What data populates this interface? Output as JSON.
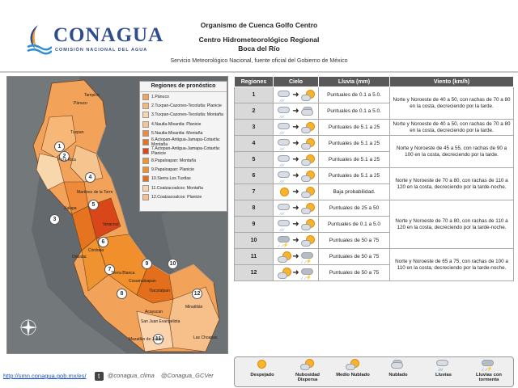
{
  "header": {
    "logo_text": "CONAGUA",
    "logo_subtitle": "COMISIÓN NACIONAL DEL AGUA",
    "title_org": "Organismo de Cuenca Golfo Centro",
    "title_center": "Centro Hidrometeorológico Regional",
    "title_place": "Boca del Río",
    "subtitle": "Servicio Meteorológico Nacional, fuente oficial del Gobierno de México"
  },
  "legend": {
    "title": "Regiones de pronóstico",
    "items": [
      {
        "label": "1.Pánuco",
        "color": "#f3a25a"
      },
      {
        "label": "2.Tuxpan-Cazones-Tecolutla: Planicie",
        "color": "#f7b877"
      },
      {
        "label": "3.Tuxpan-Cazones-Tecolutla: Montaña",
        "color": "#f9d7ad"
      },
      {
        "label": "4.Nautla-Misantla: Planicie",
        "color": "#f5c48f"
      },
      {
        "label": "5.Nautla-Misantla: Montaña",
        "color": "#ee8a3a"
      },
      {
        "label": "6.Actopan-Antigua-Jamapa-Cotaxtla: Montaña",
        "color": "#e5731f"
      },
      {
        "label": "7.Actopan-Antigua-Jamapa-Cotaxtla: Planicie",
        "color": "#d8461a"
      },
      {
        "label": "8.Papaloapan: Montaña",
        "color": "#ef9230"
      },
      {
        "label": "9.Papaloapan: Planicie",
        "color": "#f08f2c"
      },
      {
        "label": "10.Sierra Los Tuxtlas",
        "color": "#e36f1c"
      },
      {
        "label": "11.Coatzacoalcos: Montaña",
        "color": "#fbd4ae"
      },
      {
        "label": "12.Coatzacoalcos: Planicie",
        "color": "#f7c08a"
      }
    ]
  },
  "map_pins": [
    "1",
    "2",
    "3",
    "4",
    "5",
    "6",
    "7",
    "8",
    "9",
    "10",
    "11",
    "12"
  ],
  "map_cities": [
    "Tampico",
    "Tuxpan",
    "Poza Rica",
    "Martínez de la Torre",
    "Xalapa",
    "Veracruz",
    "Córdoba",
    "Orizaba",
    "Tierra Blanca",
    "Cosamaloapan",
    "Acayucan",
    "Minatitlán",
    "Tlacotalpan",
    "Las Choapas",
    "Pánuco",
    "San Juan Evangelista",
    "Mazatlán de Juárez"
  ],
  "table": {
    "headers": [
      "Regiones",
      "Cielo",
      "Lluvia (mm)",
      "Viento (km/h)"
    ],
    "rows": [
      {
        "region": "1",
        "rain": "Puntuales de 0.1 a 5.0.",
        "from": "rain",
        "to": "partly"
      },
      {
        "region": "2",
        "rain": "Puntuales de 0.1 a 5.0.",
        "from": "rain",
        "to": "cloud"
      },
      {
        "region": "3",
        "rain": "Puntuales de 5.1 a 25",
        "from": "rain",
        "to": "partly"
      },
      {
        "region": "4",
        "rain": "Puntuales de 5.1 a 25",
        "from": "rain",
        "to": "partly"
      },
      {
        "region": "5",
        "rain": "Puntuales de 5.1 a 25",
        "from": "rain",
        "to": "partly"
      },
      {
        "region": "6",
        "rain": "Puntuales de 5.1 a 25",
        "from": "rain",
        "to": "partly"
      },
      {
        "region": "7",
        "rain": "Baja probabilidad.",
        "from": "sun",
        "to": "partly"
      },
      {
        "region": "8",
        "rain": "Puntuales de 25 a 50",
        "from": "rain",
        "to": "partly"
      },
      {
        "region": "9",
        "rain": "Puntuales de 0.1 a 5.0",
        "from": "rain",
        "to": "partly"
      },
      {
        "region": "10",
        "rain": "Puntuales de 50 a 75",
        "from": "storm",
        "to": "partly"
      },
      {
        "region": "11",
        "rain": "Puntuales de 50 a 75",
        "from": "partly",
        "to": "storm"
      },
      {
        "region": "12",
        "rain": "Puntuales de 50 a 75",
        "from": "partly",
        "to": "storm"
      }
    ],
    "wind_groups": [
      {
        "text": "Norte y Noroeste de 40 a 50, con rachas de 70 a 80 en la costa, decreciendo por la tarde.",
        "rows": 2
      },
      {
        "text": "Norte y Noroeste de 40 a 50, con rachas de 70 a 80 en la costa, decreciendo por la tarde.",
        "rows": 1
      },
      {
        "text": "Norte y Noroeste de 45 a 55, con rachas de 90 a 100 en la costa, decreciendo por la tarde.",
        "rows": 2
      },
      {
        "text": "Norte y Noroeste de 70 a 80, con rachas de 110 a 120 en la costa, decreciendo por la tarde-noche.",
        "rows": 2
      },
      {
        "text": "Norte y Noroeste de 70 a 80, con rachas de 110 a 120 en la costa, decreciendo por la tarde-noche.",
        "rows": 3
      },
      {
        "text": "Norte y Noroeste de 65 a 75, con rachas de 100 a 110 en la costa, decreciendo por la tarde-noche.",
        "rows": 2
      }
    ]
  },
  "key": {
    "items": [
      {
        "label": "Despejado",
        "icon": "sun"
      },
      {
        "label": "Nubosidad Dispersa",
        "icon": "partly"
      },
      {
        "label": "Medio Nublado",
        "icon": "partly"
      },
      {
        "label": "Nublado",
        "icon": "cloud"
      },
      {
        "label": "Lluvias",
        "icon": "rain"
      },
      {
        "label": "Lluvias con tormenta",
        "icon": "storm"
      }
    ]
  },
  "footer": {
    "url": "http://smn.conagua.gob.mx/es/",
    "twitter_1": "@conagua_clima",
    "twitter_2": "@Conagua_GCVer"
  }
}
